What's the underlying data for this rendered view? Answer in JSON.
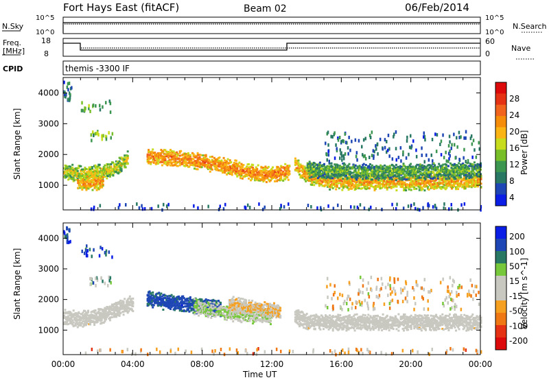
{
  "header": {
    "station": "Fort Hays East (fitACF)",
    "beam": "Beam 02",
    "date": "06/Feb/2014"
  },
  "noise_panel": {
    "left_label": "N.Sky",
    "left_ticks": [
      "10^5",
      "10^0"
    ],
    "right_label": "N.Search",
    "right_ticks": [
      "10^5",
      "10^0"
    ]
  },
  "freq_panel": {
    "left_label_1": "Freq.",
    "left_label_2": "[MHz]",
    "left_ticks": [
      "18",
      "8"
    ],
    "right_label": "Nave",
    "right_ticks": [
      "60",
      "0"
    ]
  },
  "cpid": {
    "label": "CPID",
    "value": "themis -3300 IF"
  },
  "colors": {
    "power_scale": [
      "#0a1ee6",
      "#1e46b4",
      "#287864",
      "#3c9650",
      "#78be28",
      "#c8dc1e",
      "#fab414",
      "#f58c0a",
      "#f0641e",
      "#e63214",
      "#dc0a0a"
    ],
    "velocity_scale": [
      "#0a1ee6",
      "#1e46b4",
      "#287864",
      "#78c83c",
      "#c8c8c0",
      "#c8c8c0",
      "#f5a020",
      "#f07814",
      "#e63214",
      "#dc0a0a"
    ]
  },
  "chart_data": [
    {
      "type": "heatmap",
      "name_in_image": "Power",
      "ylabel": "Slant Range [km]",
      "y_ticks": [
        "4000",
        "3000",
        "2000",
        "1000"
      ],
      "ylim": [
        200,
        4500
      ],
      "x_ticks": [
        "00:00",
        "04:00",
        "08:00",
        "12:00",
        "16:00",
        "20:00",
        "00:00"
      ],
      "xlim_hours": [
        0,
        24
      ],
      "colorbar_label": "Power [dB]",
      "colorbar_ticks": [
        "28",
        "24",
        "20",
        "16",
        "12",
        "8",
        "4"
      ],
      "colorbar_range": [
        0,
        30
      ],
      "ridges": [
        {
          "x": [
            0.0,
            1.0,
            2.0,
            3.0,
            3.7
          ],
          "y": [
            1500,
            1400,
            1450,
            1600,
            1900
          ],
          "value": 16
        },
        {
          "x": [
            0.8,
            1.5,
            2.3
          ],
          "y": [
            1150,
            1100,
            1200
          ],
          "value": 20
        },
        {
          "x": [
            4.8,
            6.0,
            7.5,
            9.0,
            10.5,
            11.5,
            12.2,
            13.0
          ],
          "y": [
            2000,
            1950,
            1850,
            1700,
            1500,
            1400,
            1420,
            1500
          ],
          "value": 22
        },
        {
          "x": [
            13.3,
            14.0,
            15.0,
            17.0,
            19.0,
            21.0,
            24.0
          ],
          "y": [
            1700,
            1350,
            1180,
            1150,
            1150,
            1150,
            1180
          ],
          "value": 20
        },
        {
          "x": [
            14.0,
            16.0,
            18.0,
            20.0,
            22.0,
            24.0
          ],
          "y": [
            1550,
            1500,
            1480,
            1480,
            1500,
            1550
          ],
          "value": 12
        }
      ],
      "patches": [
        {
          "x": [
            1.0,
            2.8
          ],
          "y": [
            3400,
            3800
          ],
          "value": 10
        },
        {
          "x": [
            1.5,
            2.8
          ],
          "y": [
            2500,
            2800
          ],
          "value": 12
        },
        {
          "x": [
            0.0,
            0.5
          ],
          "y": [
            3800,
            4400
          ],
          "value": 6
        },
        {
          "x": [
            15.0,
            24.0
          ],
          "y": [
            1800,
            2800
          ],
          "value": 6
        },
        {
          "x": [
            1.0,
            24.0
          ],
          "y": [
            250,
            450
          ],
          "value": 4
        }
      ]
    },
    {
      "type": "heatmap",
      "name_in_image": "Velocity",
      "ylabel": "Slant Range [km]",
      "y_ticks": [
        "4000",
        "3000",
        "2000",
        "1000"
      ],
      "ylim": [
        200,
        4500
      ],
      "x_ticks": [
        "00:00",
        "04:00",
        "08:00",
        "12:00",
        "16:00",
        "20:00",
        "00:00"
      ],
      "xlim_hours": [
        0,
        24
      ],
      "xlabel": "Time UT",
      "colorbar_label": "Velocity [m s^-1]",
      "colorbar_ticks": [
        "200",
        "100",
        "50",
        "15",
        "-15",
        "-50",
        "-100",
        "-200"
      ],
      "colorbar_range": [
        -250,
        250
      ],
      "ridges": [
        {
          "x": [
            0.0,
            1.0,
            2.0,
            3.0,
            4.0
          ],
          "y": [
            1450,
            1400,
            1500,
            1700,
            1950
          ],
          "value": 0
        },
        {
          "x": [
            4.8,
            6.0,
            7.5,
            9.0
          ],
          "y": [
            2100,
            1950,
            1850,
            1750
          ],
          "value": 180
        },
        {
          "x": [
            7.5,
            9.0,
            10.5,
            12.0
          ],
          "y": [
            1800,
            1650,
            1550,
            1500
          ],
          "value": 60
        },
        {
          "x": [
            9.5,
            10.5,
            11.5,
            12.5
          ],
          "y": [
            1900,
            1800,
            1700,
            1650
          ],
          "value": -60
        },
        {
          "x": [
            13.3,
            14.0,
            16.0,
            18.0,
            20.0,
            22.0,
            24.0
          ],
          "y": [
            1500,
            1300,
            1300,
            1300,
            1300,
            1300,
            1300
          ],
          "value": 0
        }
      ],
      "patches": [
        {
          "x": [
            1.0,
            2.8
          ],
          "y": [
            3400,
            3800
          ],
          "value": 180
        },
        {
          "x": [
            1.5,
            2.8
          ],
          "y": [
            2500,
            2800
          ],
          "value": 60
        },
        {
          "x": [
            0.0,
            0.4
          ],
          "y": [
            3900,
            4400
          ],
          "value": 200
        },
        {
          "x": [
            15.0,
            24.0
          ],
          "y": [
            1700,
            2800
          ],
          "value": -40
        },
        {
          "x": [
            1.0,
            24.0
          ],
          "y": [
            250,
            450
          ],
          "value": -60
        }
      ]
    }
  ]
}
